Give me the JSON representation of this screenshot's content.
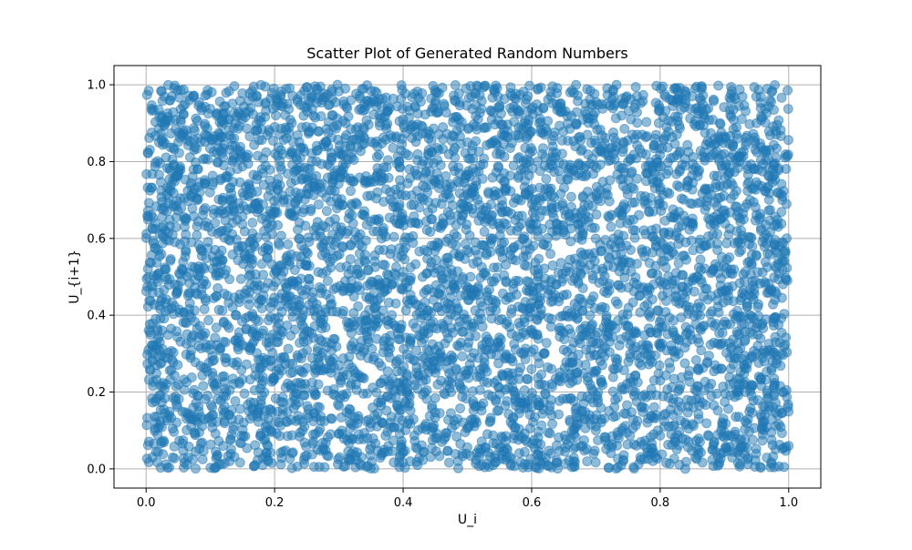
{
  "colors": {
    "point": "#1f77b4",
    "grid": "#b0b0b0",
    "background": "#ffffff"
  },
  "chart_data": {
    "type": "scatter",
    "title": "Scatter Plot of Generated Random Numbers",
    "xlabel": "U_i",
    "ylabel": "U_{i+1}",
    "xlim": [
      -0.05,
      1.05
    ],
    "ylim": [
      -0.05,
      1.05
    ],
    "xticks": [
      0.0,
      0.2,
      0.4,
      0.6,
      0.8,
      1.0
    ],
    "yticks": [
      0.0,
      0.2,
      0.4,
      0.6,
      0.8,
      1.0
    ],
    "xtick_labels": [
      "0.0",
      "0.2",
      "0.4",
      "0.6",
      "0.8",
      "1.0"
    ],
    "ytick_labels": [
      "0.0",
      "0.2",
      "0.4",
      "0.6",
      "0.8",
      "1.0"
    ],
    "grid": true,
    "point_alpha": 0.5,
    "distribution": "approximately uniform over [0, 1] x [0, 1]",
    "series": [
      {
        "values": [
          [
            0.01,
            0.03
          ],
          [
            0.02,
            0.85
          ],
          [
            0.03,
            0.41
          ],
          [
            0.04,
            0.97
          ],
          [
            0.05,
            0.22
          ],
          [
            0.06,
            0.63
          ],
          [
            0.07,
            0.11
          ],
          [
            0.08,
            0.78
          ],
          [
            0.09,
            0.49
          ],
          [
            0.1,
            0.31
          ],
          [
            0.11,
            0.92
          ],
          [
            0.12,
            0.06
          ],
          [
            0.13,
            0.7
          ],
          [
            0.14,
            0.27
          ],
          [
            0.15,
            0.58
          ],
          [
            0.16,
            0.15
          ],
          [
            0.17,
            0.88
          ],
          [
            0.18,
            0.44
          ],
          [
            0.19,
            0.02
          ],
          [
            0.2,
            0.67
          ],
          [
            0.21,
            0.36
          ],
          [
            0.22,
            0.95
          ],
          [
            0.23,
            0.19
          ],
          [
            0.24,
            0.81
          ],
          [
            0.25,
            0.53
          ],
          [
            0.26,
            0.09
          ],
          [
            0.27,
            0.74
          ],
          [
            0.28,
            0.33
          ],
          [
            0.29,
            0.61
          ],
          [
            0.3,
            0.24
          ],
          [
            0.31,
            0.99
          ],
          [
            0.32,
            0.47
          ],
          [
            0.33,
            0.13
          ],
          [
            0.34,
            0.86
          ],
          [
            0.35,
            0.39
          ],
          [
            0.36,
            0.72
          ],
          [
            0.37,
            0.05
          ],
          [
            0.38,
            0.56
          ],
          [
            0.39,
            0.28
          ],
          [
            0.4,
            0.91
          ],
          [
            0.41,
            0.17
          ],
          [
            0.42,
            0.64
          ],
          [
            0.43,
            0.42
          ],
          [
            0.44,
            0.83
          ],
          [
            0.45,
            0.08
          ],
          [
            0.46,
            0.69
          ],
          [
            0.47,
            0.34
          ],
          [
            0.48,
            0.96
          ],
          [
            0.49,
            0.21
          ],
          [
            0.5,
            0.57
          ],
          [
            0.51,
            0.12
          ],
          [
            0.52,
            0.79
          ],
          [
            0.53,
            0.46
          ],
          [
            0.54,
            0.01
          ],
          [
            0.55,
            0.68
          ],
          [
            0.56,
            0.29
          ],
          [
            0.57,
            0.93
          ],
          [
            0.58,
            0.38
          ],
          [
            0.59,
            0.75
          ],
          [
            0.6,
            0.16
          ],
          [
            0.61,
            0.52
          ],
          [
            0.62,
            0.87
          ],
          [
            0.63,
            0.04
          ],
          [
            0.64,
            0.62
          ],
          [
            0.65,
            0.31
          ],
          [
            0.66,
            0.98
          ],
          [
            0.67,
            0.25
          ],
          [
            0.68,
            0.71
          ],
          [
            0.69,
            0.43
          ],
          [
            0.7,
            0.1
          ],
          [
            0.71,
            0.84
          ],
          [
            0.72,
            0.55
          ],
          [
            0.73,
            0.18
          ],
          [
            0.74,
            0.66
          ],
          [
            0.75,
            0.37
          ],
          [
            0.76,
            0.94
          ],
          [
            0.77,
            0.07
          ],
          [
            0.78,
            0.77
          ],
          [
            0.79,
            0.48
          ],
          [
            0.8,
            0.23
          ],
          [
            0.81,
            0.89
          ],
          [
            0.82,
            0.14
          ],
          [
            0.83,
            0.6
          ],
          [
            0.84,
            0.35
          ],
          [
            0.85,
            0.97
          ],
          [
            0.86,
            0.26
          ],
          [
            0.87,
            0.73
          ],
          [
            0.88,
            0.45
          ],
          [
            0.89,
            0.03
          ],
          [
            0.9,
            0.82
          ],
          [
            0.91,
            0.51
          ],
          [
            0.92,
            0.2
          ],
          [
            0.93,
            0.65
          ],
          [
            0.94,
            0.4
          ],
          [
            0.95,
            0.9
          ],
          [
            0.96,
            0.12
          ],
          [
            0.97,
            0.76
          ],
          [
            0.98,
            0.33
          ],
          [
            0.99,
            0.59
          ],
          [
            1.0,
            0.06
          ],
          [
            0.03,
            0.62
          ],
          [
            0.07,
            0.33
          ],
          [
            0.11,
            0.54
          ],
          [
            0.15,
            0.91
          ],
          [
            0.19,
            0.71
          ],
          [
            0.23,
            0.48
          ],
          [
            0.27,
            0.16
          ],
          [
            0.31,
            0.84
          ],
          [
            0.35,
            0.06
          ],
          [
            0.39,
            0.64
          ],
          [
            0.43,
            0.89
          ],
          [
            0.47,
            0.55
          ],
          [
            0.51,
            0.37
          ],
          [
            0.55,
            0.94
          ],
          [
            0.59,
            0.18
          ],
          [
            0.63,
            0.73
          ],
          [
            0.67,
            0.51
          ],
          [
            0.71,
            0.27
          ],
          [
            0.75,
            0.8
          ],
          [
            0.79,
            0.09
          ],
          [
            0.83,
            0.43
          ],
          [
            0.87,
            0.58
          ],
          [
            0.91,
            0.96
          ],
          [
            0.95,
            0.3
          ],
          [
            0.99,
            0.7
          ],
          [
            0.05,
            0.77
          ],
          [
            0.13,
            0.02
          ],
          [
            0.21,
            0.83
          ],
          [
            0.29,
            0.41
          ],
          [
            0.37,
            0.57
          ],
          [
            0.45,
            0.26
          ],
          [
            0.53,
            0.68
          ],
          [
            0.61,
            0.99
          ],
          [
            0.69,
            0.14
          ],
          [
            0.77,
            0.47
          ],
          [
            0.85,
            0.69
          ],
          [
            0.93,
            0.22
          ],
          [
            0.02,
            0.51
          ],
          [
            0.14,
            0.4
          ],
          [
            0.26,
            0.97
          ],
          [
            0.38,
            0.12
          ],
          [
            0.5,
            0.85
          ],
          [
            0.62,
            0.3
          ],
          [
            0.74,
            0.92
          ],
          [
            0.86,
            0.05
          ],
          [
            0.98,
            0.88
          ],
          [
            0.08,
            0.19
          ],
          [
            0.34,
            0.75
          ],
          [
            0.58,
            0.63
          ],
          [
            0.82,
            0.36
          ]
        ]
      }
    ]
  }
}
